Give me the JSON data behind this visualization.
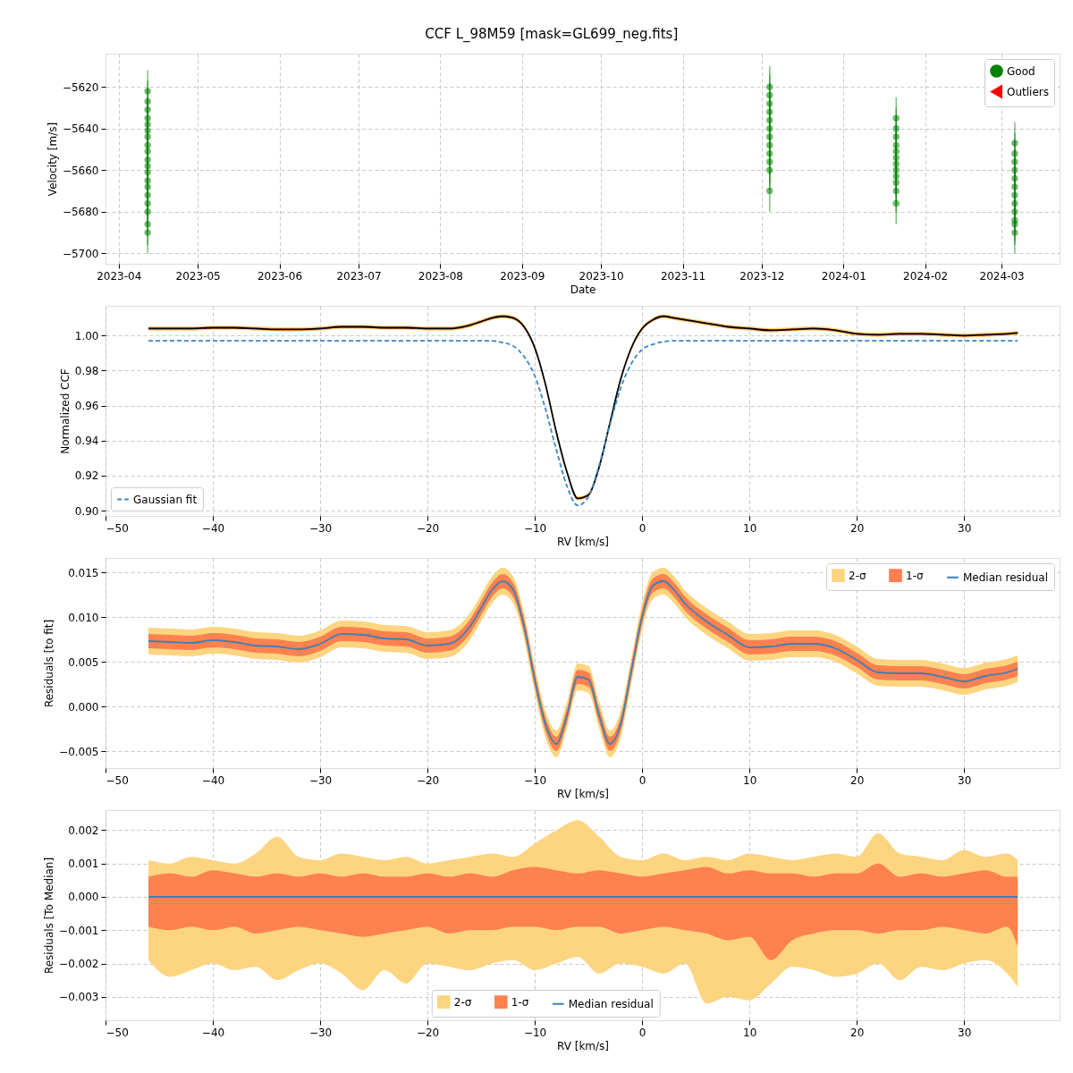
{
  "chart_data": [
    {
      "type": "scatter",
      "title": "CCF L_98M59 [mask=GL699_neg.fits]",
      "xlabel": "Date",
      "ylabel": "Velocity [m/s]",
      "xlim": [
        "2023-03-27",
        "2024-03-23"
      ],
      "ylim": [
        -5705,
        -5604
      ],
      "xticks": [
        {
          "value": "2023-04-01",
          "label": "2023-04"
        },
        {
          "value": "2023-05-01",
          "label": "2023-05"
        },
        {
          "value": "2023-06-01",
          "label": "2023-06"
        },
        {
          "value": "2023-07-01",
          "label": "2023-07"
        },
        {
          "value": "2023-08-01",
          "label": "2023-08"
        },
        {
          "value": "2023-09-01",
          "label": "2023-09"
        },
        {
          "value": "2023-10-01",
          "label": "2023-10"
        },
        {
          "value": "2023-11-01",
          "label": "2023-11"
        },
        {
          "value": "2023-12-01",
          "label": "2023-12"
        },
        {
          "value": "2024-01-01",
          "label": "2024-01"
        },
        {
          "value": "2024-02-01",
          "label": "2024-02"
        },
        {
          "value": "2024-03-01",
          "label": "2024-03"
        }
      ],
      "yticks": [
        {
          "value": -5700,
          "label": "−5700"
        },
        {
          "value": -5680,
          "label": "−5680"
        },
        {
          "value": -5660,
          "label": "−5660"
        },
        {
          "value": -5640,
          "label": "−5640"
        },
        {
          "value": -5620,
          "label": "−5620"
        }
      ],
      "grid": true,
      "legend": "top right",
      "marker": "circle",
      "series": [
        {
          "name": "Good",
          "color": "#008000",
          "marker": "circle",
          "x": [
            "2023-04-12",
            "2023-04-12",
            "2023-04-12",
            "2023-04-12",
            "2023-04-12",
            "2023-04-12",
            "2023-04-12",
            "2023-04-12",
            "2023-04-12",
            "2023-04-12",
            "2023-04-12",
            "2023-04-12",
            "2023-04-12",
            "2023-04-12",
            "2023-04-12",
            "2023-04-12",
            "2023-04-12",
            "2023-04-12",
            "2023-04-12",
            "2023-12-04",
            "2023-12-04",
            "2023-12-04",
            "2023-12-04",
            "2023-12-04",
            "2023-12-04",
            "2023-12-04",
            "2023-12-04",
            "2023-12-04",
            "2023-12-04",
            "2023-12-04",
            "2023-12-04",
            "2024-01-21",
            "2024-01-21",
            "2024-01-21",
            "2024-01-21",
            "2024-01-21",
            "2024-01-21",
            "2024-01-21",
            "2024-01-21",
            "2024-01-21",
            "2024-01-21",
            "2024-01-21",
            "2024-01-21",
            "2024-03-06",
            "2024-03-06",
            "2024-03-06",
            "2024-03-06",
            "2024-03-06",
            "2024-03-06",
            "2024-03-06",
            "2024-03-06",
            "2024-03-06",
            "2024-03-06",
            "2024-03-06",
            "2024-03-06"
          ],
          "values": [
            -5622,
            -5627,
            -5631,
            -5635,
            -5638,
            -5641,
            -5644,
            -5648,
            -5651,
            -5655,
            -5658,
            -5661,
            -5665,
            -5668,
            -5672,
            -5676,
            -5680,
            -5686,
            -5690,
            -5620,
            -5624,
            -5628,
            -5632,
            -5636,
            -5640,
            -5644,
            -5648,
            -5652,
            -5656,
            -5660,
            -5670,
            -5635,
            -5640,
            -5644,
            -5648,
            -5651,
            -5654,
            -5657,
            -5660,
            -5663,
            -5666,
            -5670,
            -5676,
            -5647,
            -5652,
            -5656,
            -5660,
            -5664,
            -5668,
            -5672,
            -5676,
            -5680,
            -5684,
            -5686,
            -5690
          ],
          "errors": [
            10,
            10,
            10,
            10,
            10,
            10,
            10,
            10,
            10,
            10,
            10,
            10,
            10,
            10,
            10,
            10,
            10,
            10,
            10,
            10,
            10,
            10,
            10,
            10,
            10,
            10,
            10,
            10,
            10,
            10,
            10,
            10,
            10,
            10,
            10,
            10,
            10,
            10,
            10,
            10,
            10,
            10,
            10,
            10,
            10,
            10,
            10,
            10,
            10,
            10,
            10,
            10,
            10,
            10,
            10
          ]
        },
        {
          "name": "Outliers",
          "color": "#ff0000",
          "marker": "triangle"
        }
      ]
    },
    {
      "type": "line",
      "xlabel": "RV [km/s]",
      "ylabel": "Normalized CCF",
      "xlim": [
        -50,
        38.9
      ],
      "ylim": [
        0.897,
        1.017
      ],
      "xticks": [
        {
          "value": -50,
          "label": "−50"
        },
        {
          "value": -40,
          "label": "−40"
        },
        {
          "value": -30,
          "label": "−30"
        },
        {
          "value": -20,
          "label": "−20"
        },
        {
          "value": -10,
          "label": "−10"
        },
        0,
        10,
        20,
        30
      ],
      "yticks": [
        {
          "value": 0.9,
          "label": "0.90"
        },
        {
          "value": 0.92,
          "label": "0.92"
        },
        {
          "value": 0.94,
          "label": "0.94"
        },
        {
          "value": 0.96,
          "label": "0.96"
        },
        {
          "value": 0.98,
          "label": "0.98"
        },
        {
          "value": 1.0,
          "label": "1.00"
        }
      ],
      "grid": true,
      "legend": "bottom left",
      "marker": "none",
      "x": [
        -46,
        -44,
        -42,
        -40,
        -38,
        -36,
        -34,
        -32,
        -30,
        -28,
        -26,
        -24,
        -22,
        -20,
        -18,
        -16,
        -15,
        -14,
        -13,
        -12,
        -11,
        -10,
        -9,
        -8,
        -7,
        -6,
        -5,
        -4,
        -3,
        -2,
        -1,
        0,
        1,
        2,
        3,
        4,
        6,
        8,
        10,
        12,
        14,
        16,
        18,
        20,
        22,
        24,
        26,
        28,
        30,
        32,
        34,
        35
      ],
      "series": [
        {
          "type": "area",
          "color": "#fdd580",
          "values": [
            null,
            null,
            null,
            null,
            null,
            null,
            null,
            null,
            null,
            null,
            null,
            null,
            null,
            null,
            null,
            null,
            null,
            null,
            null,
            null,
            null,
            null,
            null,
            null,
            null,
            null,
            null,
            null,
            null,
            null,
            null,
            null,
            null,
            null,
            null,
            null,
            null,
            null,
            null,
            null,
            null,
            null,
            null,
            null,
            null,
            null,
            null,
            null,
            null,
            null,
            null,
            null
          ],
          "lower": [
            1.0028,
            1.0028,
            1.0028,
            1.0033,
            1.0033,
            1.0028,
            1.0023,
            1.0023,
            1.0028,
            1.0038,
            1.0038,
            1.0033,
            1.0033,
            1.0028,
            1.0028,
            1.0048,
            1.0068,
            1.0088,
            1.0098,
            1.0088,
            1.0038,
            0.9918,
            0.9708,
            0.9438,
            0.9208,
            0.9058,
            0.9078,
            0.9238,
            0.9488,
            0.9738,
            0.9918,
            1.0028,
            1.0078,
            1.0098,
            1.0088,
            1.0078,
            1.0058,
            1.0038,
            1.0028,
            1.0018,
            1.0023,
            1.0028,
            1.0018,
            0.9998,
            0.9993,
            0.9998,
            0.9998,
            0.9993,
            0.9988,
            0.9993,
            0.9998,
            1.0003
          ],
          "upper": [
            1.0052,
            1.0052,
            1.0052,
            1.0057,
            1.0057,
            1.0052,
            1.0047,
            1.0047,
            1.0052,
            1.0062,
            1.0062,
            1.0057,
            1.0057,
            1.0052,
            1.0052,
            1.0072,
            1.0092,
            1.0112,
            1.0122,
            1.0112,
            1.0062,
            0.9942,
            0.9732,
            0.9462,
            0.9232,
            0.9082,
            0.9102,
            0.9262,
            0.9512,
            0.9762,
            0.9942,
            1.0052,
            1.0102,
            1.0122,
            1.0112,
            1.0102,
            1.0082,
            1.0062,
            1.0052,
            1.0042,
            1.0047,
            1.0052,
            1.0042,
            1.0022,
            1.0017,
            1.0022,
            1.0022,
            1.0017,
            1.0012,
            1.0017,
            1.0022,
            1.0027
          ]
        },
        {
          "type": "area",
          "color": "#fe8150",
          "values": [
            null,
            null,
            null,
            null,
            null,
            null,
            null,
            null,
            null,
            null,
            null,
            null,
            null,
            null,
            null,
            null,
            null,
            null,
            null,
            null,
            null,
            null,
            null,
            null,
            null,
            null,
            null,
            null,
            null,
            null,
            null,
            null,
            null,
            null,
            null,
            null,
            null,
            null,
            null,
            null,
            null,
            null,
            null,
            null,
            null,
            null,
            null,
            null,
            null,
            null,
            null,
            null
          ],
          "lower": [
            1.0034,
            1.0034,
            1.0034,
            1.0039,
            1.0039,
            1.0034,
            1.0029,
            1.0029,
            1.0034,
            1.0044,
            1.0044,
            1.0039,
            1.0039,
            1.0034,
            1.0034,
            1.0054,
            1.0074,
            1.0094,
            1.0104,
            1.0094,
            1.0044,
            0.9924,
            0.9714,
            0.9444,
            0.9214,
            0.9064,
            0.9084,
            0.9244,
            0.9494,
            0.9744,
            0.9924,
            1.0034,
            1.0084,
            1.0104,
            1.0094,
            1.0084,
            1.0064,
            1.0044,
            1.0034,
            1.0024,
            1.0029,
            1.0034,
            1.0024,
            1.0004,
            0.9999,
            1.0004,
            1.0004,
            0.9999,
            0.9994,
            0.9999,
            1.0004,
            1.0009
          ],
          "upper": [
            1.0046,
            1.0046,
            1.0046,
            1.0051,
            1.0051,
            1.0046,
            1.0041,
            1.0041,
            1.0046,
            1.0056,
            1.0056,
            1.0051,
            1.0051,
            1.0046,
            1.0046,
            1.0066,
            1.0086,
            1.0106,
            1.0116,
            1.0106,
            1.0056,
            0.9936,
            0.9726,
            0.9456,
            0.9226,
            0.9076,
            0.9096,
            0.9256,
            0.9506,
            0.9756,
            0.9936,
            1.0046,
            1.0096,
            1.0116,
            1.0106,
            1.0096,
            1.0076,
            1.0056,
            1.0046,
            1.0036,
            1.0041,
            1.0046,
            1.0036,
            1.0016,
            1.0011,
            1.0016,
            1.0016,
            1.0011,
            1.0006,
            1.0011,
            1.0016,
            1.0021
          ]
        },
        {
          "type": "line",
          "color": "#000000",
          "values": [
            1.004,
            1.004,
            1.004,
            1.0045,
            1.0045,
            1.004,
            1.0035,
            1.0035,
            1.004,
            1.005,
            1.005,
            1.0045,
            1.0045,
            1.004,
            1.004,
            1.006,
            1.008,
            1.01,
            1.011,
            1.01,
            1.005,
            0.993,
            0.972,
            0.945,
            0.922,
            0.907,
            0.909,
            0.925,
            0.95,
            0.975,
            0.993,
            1.004,
            1.009,
            1.011,
            1.01,
            1.009,
            1.007,
            1.005,
            1.004,
            1.003,
            1.0035,
            1.004,
            1.003,
            1.001,
            1.0005,
            1.001,
            1.001,
            1.0005,
            1.0,
            1.0005,
            1.001,
            1.0015
          ]
        },
        {
          "name": "Gaussian fit",
          "type": "line",
          "color": "#3a87c0",
          "line_style": "dashed",
          "values": [
            0.997,
            0.997,
            0.997,
            0.997,
            0.997,
            0.997,
            0.997,
            0.997,
            0.997,
            0.997,
            0.997,
            0.997,
            0.997,
            0.997,
            0.997,
            0.997,
            0.997,
            0.997,
            0.996,
            0.994,
            0.988,
            0.977,
            0.958,
            0.935,
            0.914,
            0.903,
            0.908,
            0.926,
            0.949,
            0.97,
            0.984,
            0.992,
            0.995,
            0.9965,
            0.997,
            0.997,
            0.997,
            0.997,
            0.997,
            0.997,
            0.997,
            0.997,
            0.997,
            0.997,
            0.997,
            0.997,
            0.997,
            0.997,
            0.997,
            0.997,
            0.997,
            0.997
          ]
        }
      ]
    },
    {
      "type": "line",
      "xlabel": "RV [km/s]",
      "ylabel": "Residuals [to fit]",
      "xlim": [
        -50,
        38.9
      ],
      "ylim": [
        -0.0069,
        0.0166
      ],
      "xticks": [
        {
          "value": -50,
          "label": "−50"
        },
        {
          "value": -40,
          "label": "−40"
        },
        {
          "value": -30,
          "label": "−30"
        },
        {
          "value": -20,
          "label": "−20"
        },
        {
          "value": -10,
          "label": "−10"
        },
        0,
        10,
        20,
        30
      ],
      "yticks": [
        {
          "value": -0.005,
          "label": "−0.005"
        },
        {
          "value": 0,
          "label": "0.000"
        },
        {
          "value": 0.005,
          "label": "0.005"
        },
        {
          "value": 0.01,
          "label": "0.010"
        },
        {
          "value": 0.015,
          "label": "0.015"
        }
      ],
      "grid": true,
      "legend": "top right",
      "marker": "none",
      "x": [
        -46,
        -44,
        -42,
        -40,
        -38,
        -36,
        -34,
        -32,
        -30,
        -28,
        -26,
        -24,
        -22,
        -20,
        -18,
        -16,
        -15,
        -14,
        -13,
        -12,
        -11,
        -10,
        -9,
        -8,
        -7,
        -6,
        -5,
        -4,
        -3,
        -2,
        -1,
        0,
        1,
        2,
        3,
        4,
        6,
        8,
        10,
        12,
        14,
        16,
        18,
        20,
        22,
        24,
        26,
        28,
        30,
        32,
        34,
        35
      ],
      "series": [
        {
          "name": "2-σ",
          "type": "area",
          "color": "#fdd580",
          "values": [
            null,
            null,
            null,
            null,
            null,
            null,
            null,
            null,
            null,
            null,
            null,
            null,
            null,
            null,
            null,
            null,
            null,
            null,
            null,
            null,
            null,
            null,
            null,
            null,
            null,
            null,
            null,
            null,
            null,
            null,
            null,
            null,
            null,
            null,
            null,
            null,
            null,
            null,
            null,
            null,
            null,
            null,
            null,
            null,
            null,
            null,
            null,
            null,
            null,
            null,
            null,
            null
          ],
          "lower": [
            0.0058,
            0.0057,
            0.0056,
            0.0059,
            0.0057,
            0.0053,
            0.0052,
            0.0049,
            0.0055,
            0.0066,
            0.0065,
            0.0061,
            0.006,
            0.0053,
            0.0055,
            0.0075,
            0.0095,
            0.0115,
            0.0125,
            0.0115,
            0.0075,
            0.0015,
            -0.0035,
            -0.0057,
            -0.0025,
            0.0018,
            0.0015,
            -0.0025,
            -0.0057,
            -0.0035,
            0.0025,
            0.0085,
            0.012,
            0.0125,
            0.0115,
            0.01,
            0.008,
            0.0065,
            0.0051,
            0.0052,
            0.0055,
            0.0055,
            0.005,
            0.0037,
            0.0023,
            0.0022,
            0.0022,
            0.0018,
            0.0013,
            0.0019,
            0.0023,
            0.0027
          ],
          "upper": [
            0.0088,
            0.0087,
            0.0086,
            0.0089,
            0.0087,
            0.0083,
            0.0082,
            0.0079,
            0.0085,
            0.0096,
            0.0095,
            0.0091,
            0.009,
            0.0083,
            0.0085,
            0.0105,
            0.0125,
            0.0145,
            0.0155,
            0.0145,
            0.0105,
            0.0045,
            -0.0005,
            -0.0027,
            0.0005,
            0.0048,
            0.0045,
            0.0005,
            -0.0027,
            -0.0005,
            0.0055,
            0.0115,
            0.015,
            0.0155,
            0.0145,
            0.013,
            0.011,
            0.0095,
            0.0081,
            0.0082,
            0.0085,
            0.0085,
            0.008,
            0.0067,
            0.0053,
            0.0052,
            0.0052,
            0.0048,
            0.0043,
            0.0049,
            0.0053,
            0.0057
          ]
        },
        {
          "name": "1-σ",
          "type": "area",
          "color": "#fe8150",
          "values": [
            null,
            null,
            null,
            null,
            null,
            null,
            null,
            null,
            null,
            null,
            null,
            null,
            null,
            null,
            null,
            null,
            null,
            null,
            null,
            null,
            null,
            null,
            null,
            null,
            null,
            null,
            null,
            null,
            null,
            null,
            null,
            null,
            null,
            null,
            null,
            null,
            null,
            null,
            null,
            null,
            null,
            null,
            null,
            null,
            null,
            null,
            null,
            null,
            null,
            null,
            null,
            null
          ],
          "lower": [
            0.0065,
            0.0064,
            0.0063,
            0.0066,
            0.0064,
            0.006,
            0.0059,
            0.0056,
            0.0062,
            0.0073,
            0.0072,
            0.0068,
            0.0067,
            0.006,
            0.0062,
            0.0082,
            0.0102,
            0.0122,
            0.0132,
            0.0122,
            0.0082,
            0.0022,
            -0.0028,
            -0.005,
            -0.0018,
            0.0025,
            0.0022,
            -0.0018,
            -0.005,
            -0.0028,
            0.0032,
            0.0092,
            0.0127,
            0.0132,
            0.0122,
            0.0107,
            0.0087,
            0.0072,
            0.0058,
            0.0059,
            0.0062,
            0.0062,
            0.0057,
            0.0044,
            0.003,
            0.0029,
            0.0029,
            0.0025,
            0.002,
            0.0026,
            0.003,
            0.0034
          ],
          "upper": [
            0.0081,
            0.008,
            0.0079,
            0.0082,
            0.008,
            0.0076,
            0.0075,
            0.0072,
            0.0078,
            0.0089,
            0.0088,
            0.0084,
            0.0083,
            0.0076,
            0.0078,
            0.0098,
            0.0118,
            0.0138,
            0.0148,
            0.0138,
            0.0098,
            0.0038,
            -0.0012,
            -0.0034,
            -0.0002,
            0.0041,
            0.0038,
            -0.0002,
            -0.0034,
            -0.0012,
            0.0048,
            0.0108,
            0.0143,
            0.0148,
            0.0138,
            0.0123,
            0.0103,
            0.0088,
            0.0074,
            0.0075,
            0.0078,
            0.0078,
            0.0073,
            0.006,
            0.0046,
            0.0045,
            0.0045,
            0.0041,
            0.0036,
            0.0042,
            0.0046,
            0.005
          ]
        },
        {
          "name": "Median residual",
          "type": "line",
          "color": "#3f7fb5",
          "values": [
            0.0073,
            0.0072,
            0.0071,
            0.0074,
            0.0072,
            0.0068,
            0.0067,
            0.0064,
            0.007,
            0.0081,
            0.008,
            0.0076,
            0.0075,
            0.0068,
            0.007,
            0.009,
            0.011,
            0.013,
            0.014,
            0.013,
            0.009,
            0.003,
            -0.002,
            -0.0042,
            -0.001,
            0.0033,
            0.003,
            -0.001,
            -0.0042,
            -0.002,
            0.004,
            0.01,
            0.0135,
            0.014,
            0.013,
            0.0115,
            0.0095,
            0.008,
            0.0066,
            0.0067,
            0.007,
            0.007,
            0.0065,
            0.0052,
            0.0038,
            0.0037,
            0.0037,
            0.0033,
            0.0028,
            0.0034,
            0.0038,
            0.0042
          ]
        }
      ]
    },
    {
      "type": "line",
      "xlabel": "RV [km/s]",
      "ylabel": "Residuals [To Median]",
      "xlim": [
        -50,
        38.9
      ],
      "ylim": [
        -0.0037,
        0.0026
      ],
      "xticks": [
        {
          "value": -50,
          "label": "−50"
        },
        {
          "value": -40,
          "label": "−40"
        },
        {
          "value": -30,
          "label": "−30"
        },
        {
          "value": -20,
          "label": "−20"
        },
        {
          "value": -10,
          "label": "−10"
        },
        0,
        10,
        20,
        30
      ],
      "yticks": [
        {
          "value": -0.003,
          "label": "−0.003"
        },
        {
          "value": -0.002,
          "label": "−0.002"
        },
        {
          "value": -0.001,
          "label": "−0.001"
        },
        {
          "value": 0,
          "label": "0.000"
        },
        {
          "value": 0.001,
          "label": "0.001"
        },
        {
          "value": 0.002,
          "label": "0.002"
        }
      ],
      "grid": true,
      "legend": "bottom",
      "marker": "none",
      "x": [
        -46,
        -44,
        -42,
        -40,
        -38,
        -36,
        -34,
        -32,
        -30,
        -28,
        -26,
        -24,
        -22,
        -20,
        -18,
        -16,
        -14,
        -12,
        -10,
        -8,
        -6,
        -4,
        -2,
        0,
        2,
        4,
        6,
        8,
        10,
        12,
        14,
        16,
        18,
        20,
        22,
        24,
        26,
        28,
        30,
        32,
        34,
        35
      ],
      "series": [
        {
          "name": "2-σ",
          "type": "area",
          "color": "#fdd580",
          "values": [
            null,
            null,
            null,
            null,
            null,
            null,
            null,
            null,
            null,
            null,
            null,
            null,
            null,
            null,
            null,
            null,
            null,
            null,
            null,
            null,
            null,
            null,
            null,
            null,
            null,
            null,
            null,
            null,
            null,
            null,
            null,
            null,
            null,
            null,
            null,
            null,
            null,
            null,
            null,
            null,
            null,
            null
          ],
          "lower": [
            -0.0019,
            -0.0024,
            -0.0022,
            -0.002,
            -0.0022,
            -0.0021,
            -0.0025,
            -0.0022,
            -0.002,
            -0.0023,
            -0.0028,
            -0.0022,
            -0.0026,
            -0.002,
            -0.0021,
            -0.0022,
            -0.002,
            -0.0019,
            -0.0022,
            -0.002,
            -0.0018,
            -0.0023,
            -0.002,
            -0.0021,
            -0.0023,
            -0.002,
            -0.0032,
            -0.003,
            -0.0031,
            -0.0026,
            -0.0021,
            -0.0022,
            -0.0024,
            -0.0023,
            -0.002,
            -0.0025,
            -0.0021,
            -0.0022,
            -0.002,
            -0.0019,
            -0.0023,
            -0.0027
          ],
          "upper": [
            0.0011,
            0.001,
            0.0012,
            0.0011,
            0.001,
            0.0013,
            0.0018,
            0.0012,
            0.0011,
            0.0013,
            0.0012,
            0.0011,
            0.0012,
            0.001,
            0.0011,
            0.0012,
            0.0013,
            0.0012,
            0.0016,
            0.002,
            0.0023,
            0.0018,
            0.0012,
            0.0011,
            0.0013,
            0.0011,
            0.0012,
            0.0011,
            0.0013,
            0.0012,
            0.0011,
            0.0012,
            0.0013,
            0.0012,
            0.0019,
            0.0013,
            0.0012,
            0.0011,
            0.0014,
            0.0012,
            0.0013,
            0.0011
          ]
        },
        {
          "name": "1-σ",
          "type": "area",
          "color": "#fe8150",
          "values": [
            null,
            null,
            null,
            null,
            null,
            null,
            null,
            null,
            null,
            null,
            null,
            null,
            null,
            null,
            null,
            null,
            null,
            null,
            null,
            null,
            null,
            null,
            null,
            null,
            null,
            null,
            null,
            null,
            null,
            null,
            null,
            null,
            null,
            null,
            null,
            null,
            null,
            null,
            null,
            null,
            null,
            null
          ],
          "lower": [
            -0.0009,
            -0.001,
            -0.0009,
            -0.001,
            -0.0009,
            -0.0011,
            -0.001,
            -0.0009,
            -0.001,
            -0.0011,
            -0.0012,
            -0.0011,
            -0.001,
            -0.0009,
            -0.0011,
            -0.001,
            -0.001,
            -0.0009,
            -0.0009,
            -0.001,
            -0.0009,
            -0.0009,
            -0.0011,
            -0.001,
            -0.0009,
            -0.001,
            -0.0011,
            -0.0013,
            -0.0012,
            -0.0019,
            -0.0013,
            -0.0011,
            -0.001,
            -0.001,
            -0.0011,
            -0.001,
            -0.001,
            -0.0009,
            -0.001,
            -0.0011,
            -0.0009,
            -0.0015
          ],
          "upper": [
            0.0006,
            0.0007,
            0.0006,
            0.0008,
            0.0007,
            0.0006,
            0.0007,
            0.0006,
            0.0007,
            0.0006,
            0.0007,
            0.0006,
            0.0006,
            0.0007,
            0.0006,
            0.0007,
            0.0006,
            0.0008,
            0.0009,
            0.0008,
            0.0007,
            0.0008,
            0.0007,
            0.0006,
            0.0007,
            0.0008,
            0.0009,
            0.0007,
            0.0008,
            0.0007,
            0.0007,
            0.0006,
            0.0007,
            0.0007,
            0.001,
            0.0006,
            0.0007,
            0.0006,
            0.0007,
            0.0008,
            0.0006,
            0.0006
          ]
        },
        {
          "name": "Median residual",
          "type": "line",
          "color": "#3f7fb5",
          "x": [
            -46,
            35
          ],
          "values": [
            0,
            0
          ]
        }
      ]
    }
  ]
}
